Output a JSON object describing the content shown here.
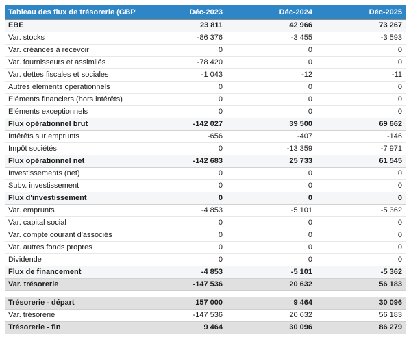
{
  "table": {
    "title": "Tableau des flux de trésorerie (GBP)",
    "columns": [
      "Déc-2023",
      "Déc-2024",
      "Déc-2025"
    ],
    "colors": {
      "header_bg": "#2E86C6",
      "header_text": "#FFFFFF",
      "subtotal_bg": "#F5F6F7",
      "total_bg": "#E0E0E0"
    },
    "rows": [
      {
        "label": "EBE",
        "values": [
          "23 811",
          "42 966",
          "73 267"
        ],
        "style": "subtotal"
      },
      {
        "label": "Var. stocks",
        "values": [
          "-86 376",
          "-3 455",
          "-3 593"
        ],
        "style": "normal"
      },
      {
        "label": "Var. créances à recevoir",
        "values": [
          "0",
          "0",
          "0"
        ],
        "style": "normal"
      },
      {
        "label": "Var. fournisseurs et assimilés",
        "values": [
          "-78 420",
          "0",
          "0"
        ],
        "style": "normal"
      },
      {
        "label": "Var. dettes fiscales et sociales",
        "values": [
          "-1 043",
          "-12",
          "-11"
        ],
        "style": "normal"
      },
      {
        "label": "Autres éléments opérationnels",
        "values": [
          "0",
          "0",
          "0"
        ],
        "style": "normal"
      },
      {
        "label": "Eléments financiers (hors intérêts)",
        "values": [
          "0",
          "0",
          "0"
        ],
        "style": "normal"
      },
      {
        "label": "Eléments exceptionnels",
        "values": [
          "0",
          "0",
          "0"
        ],
        "style": "normal"
      },
      {
        "label": "Flux opérationnel brut",
        "values": [
          "-142 027",
          "39 500",
          "69 662"
        ],
        "style": "subtotal"
      },
      {
        "label": "Intérêts sur emprunts",
        "values": [
          "-656",
          "-407",
          "-146"
        ],
        "style": "normal"
      },
      {
        "label": "Impôt sociétés",
        "values": [
          "0",
          "-13 359",
          "-7 971"
        ],
        "style": "normal"
      },
      {
        "label": "Flux opérationnel net",
        "values": [
          "-142 683",
          "25 733",
          "61 545"
        ],
        "style": "subtotal"
      },
      {
        "label": "Investissements (net)",
        "values": [
          "0",
          "0",
          "0"
        ],
        "style": "normal"
      },
      {
        "label": "Subv. investissement",
        "values": [
          "0",
          "0",
          "0"
        ],
        "style": "normal"
      },
      {
        "label": "Flux d'investissement",
        "values": [
          "0",
          "0",
          "0"
        ],
        "style": "subtotal"
      },
      {
        "label": "Var. emprunts",
        "values": [
          "-4 853",
          "-5 101",
          "-5 362"
        ],
        "style": "normal"
      },
      {
        "label": "Var. capital social",
        "values": [
          "0",
          "0",
          "0"
        ],
        "style": "normal"
      },
      {
        "label": "Var. compte courant d'associés",
        "values": [
          "0",
          "0",
          "0"
        ],
        "style": "normal"
      },
      {
        "label": "Var. autres fonds propres",
        "values": [
          "0",
          "0",
          "0"
        ],
        "style": "normal"
      },
      {
        "label": "Dividende",
        "values": [
          "0",
          "0",
          "0"
        ],
        "style": "normal"
      },
      {
        "label": "Flux de financement",
        "values": [
          "-4 853",
          "-5 101",
          "-5 362"
        ],
        "style": "subtotal"
      },
      {
        "label": "Var. trésorerie",
        "values": [
          "-147 536",
          "20 632",
          "56 183"
        ],
        "style": "total"
      },
      {
        "label": "Trésorerie - départ",
        "values": [
          "157 000",
          "9 464",
          "30 096"
        ],
        "style": "total",
        "gap_before": true
      },
      {
        "label": "Var. trésorerie",
        "values": [
          "-147 536",
          "20 632",
          "56 183"
        ],
        "style": "normal"
      },
      {
        "label": "Trésorerie - fin",
        "values": [
          "9 464",
          "30 096",
          "86 279"
        ],
        "style": "total"
      }
    ]
  }
}
